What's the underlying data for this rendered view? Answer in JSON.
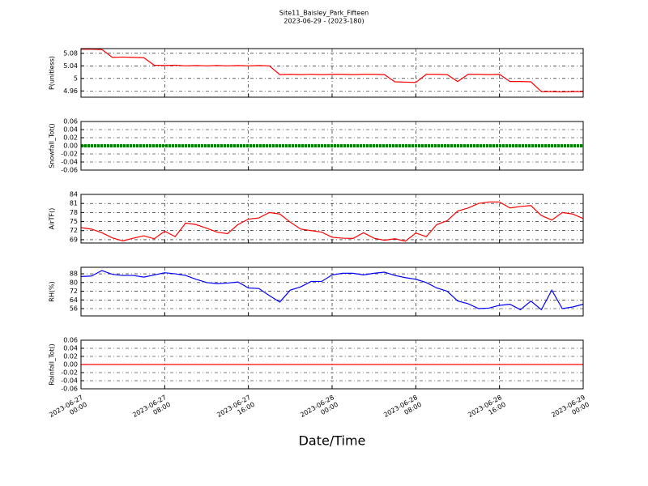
{
  "chart_data": [
    {
      "type": "line",
      "title": "Site11_Baisley_Park_Fifteen",
      "subtitle": "2023-06-29 - (2023-180)",
      "ylabel": "P(unitless)",
      "xlim": [
        "2023-06-27 00:00",
        "2023-06-29 00:00"
      ],
      "ylim": [
        4.94,
        5.095
      ],
      "yticks": [
        4.96,
        5.0,
        5.04,
        5.08
      ],
      "grid": true,
      "x": [
        "2023-06-27 00:00",
        "2023-06-27 01:00",
        "2023-06-27 02:00",
        "2023-06-27 03:00",
        "2023-06-27 04:00",
        "2023-06-27 05:00",
        "2023-06-27 06:00",
        "2023-06-27 07:00",
        "2023-06-27 08:00",
        "2023-06-27 09:00",
        "2023-06-27 10:00",
        "2023-06-27 11:00",
        "2023-06-27 12:00",
        "2023-06-27 13:00",
        "2023-06-27 14:00",
        "2023-06-27 15:00",
        "2023-06-27 16:00",
        "2023-06-27 17:00",
        "2023-06-27 18:00",
        "2023-06-27 19:00",
        "2023-06-27 20:00",
        "2023-06-27 21:00",
        "2023-06-27 22:00",
        "2023-06-27 23:00",
        "2023-06-28 00:00",
        "2023-06-28 01:00",
        "2023-06-28 02:00",
        "2023-06-28 03:00",
        "2023-06-28 04:00",
        "2023-06-28 05:00",
        "2023-06-28 06:00",
        "2023-06-28 07:00",
        "2023-06-28 08:00",
        "2023-06-28 09:00",
        "2023-06-28 10:00",
        "2023-06-28 11:00",
        "2023-06-28 12:00",
        "2023-06-28 13:00",
        "2023-06-28 14:00",
        "2023-06-28 15:00",
        "2023-06-28 16:00",
        "2023-06-28 17:00",
        "2023-06-28 18:00",
        "2023-06-28 19:00",
        "2023-06-28 20:00",
        "2023-06-28 21:00",
        "2023-06-28 22:00",
        "2023-06-28 23:00",
        "2023-06-29 00:00"
      ],
      "series": [
        {
          "color": "#ff0000",
          "values": [
            5.093,
            5.093,
            5.092,
            5.067,
            5.068,
            5.067,
            5.066,
            5.042,
            5.041,
            5.042,
            5.04,
            5.041,
            5.04,
            5.041,
            5.04,
            5.041,
            5.04,
            5.041,
            5.04,
            5.012,
            5.013,
            5.012,
            5.013,
            5.012,
            5.013,
            5.013,
            5.012,
            5.013,
            5.013,
            5.012,
            4.989,
            4.988,
            4.987,
            5.013,
            5.013,
            5.012,
            4.99,
            5.013,
            5.013,
            5.012,
            5.013,
            4.99,
            4.99,
            4.989,
            4.958,
            4.958,
            4.957,
            4.958,
            4.958
          ]
        }
      ]
    },
    {
      "type": "line",
      "ylabel": "Snowfall_Tot()",
      "xlim": [
        "2023-06-27 00:00",
        "2023-06-29 00:00"
      ],
      "ylim": [
        -0.06,
        0.06
      ],
      "yticks": [
        -0.06,
        -0.04,
        -0.02,
        {
          "value": 0,
          "label": "0.00"
        },
        0.02,
        0.04,
        0.06
      ],
      "grid": true,
      "x": [
        "2023-06-27 00:00",
        "2023-06-27 01:00",
        "2023-06-27 02:00",
        "2023-06-27 03:00",
        "2023-06-27 04:00",
        "2023-06-27 05:00",
        "2023-06-27 06:00",
        "2023-06-27 07:00",
        "2023-06-27 08:00",
        "2023-06-27 09:00",
        "2023-06-27 10:00",
        "2023-06-27 11:00",
        "2023-06-27 12:00",
        "2023-06-27 13:00",
        "2023-06-27 14:00",
        "2023-06-27 15:00",
        "2023-06-27 16:00",
        "2023-06-27 17:00",
        "2023-06-27 18:00",
        "2023-06-27 19:00",
        "2023-06-27 20:00",
        "2023-06-27 21:00",
        "2023-06-27 22:00",
        "2023-06-27 23:00",
        "2023-06-28 00:00",
        "2023-06-28 01:00",
        "2023-06-28 02:00",
        "2023-06-28 03:00",
        "2023-06-28 04:00",
        "2023-06-28 05:00",
        "2023-06-28 06:00",
        "2023-06-28 07:00",
        "2023-06-28 08:00",
        "2023-06-28 09:00",
        "2023-06-28 10:00",
        "2023-06-28 11:00",
        "2023-06-28 12:00",
        "2023-06-28 13:00",
        "2023-06-28 14:00",
        "2023-06-28 15:00",
        "2023-06-28 16:00",
        "2023-06-28 17:00",
        "2023-06-28 18:00",
        "2023-06-28 19:00",
        "2023-06-28 20:00",
        "2023-06-28 21:00",
        "2023-06-28 22:00",
        "2023-06-28 23:00",
        "2023-06-29 00:00"
      ],
      "series": [
        {
          "color": "#008000",
          "markers": true,
          "values": [
            0,
            0,
            0,
            0,
            0,
            0,
            0,
            0,
            0,
            0,
            0,
            0,
            0,
            0,
            0,
            0,
            0,
            0,
            0,
            0,
            0,
            0,
            0,
            0,
            0,
            0,
            0,
            0,
            0,
            0,
            0,
            0,
            0,
            0,
            0,
            0,
            0,
            0,
            0,
            0,
            0,
            0,
            0,
            0,
            0,
            0,
            0,
            0,
            0
          ]
        }
      ]
    },
    {
      "type": "line",
      "ylabel": "AirTF()",
      "xlim": [
        "2023-06-27 00:00",
        "2023-06-29 00:00"
      ],
      "ylim": [
        67.9,
        84
      ],
      "yticks": [
        69,
        72,
        75,
        78,
        81,
        84
      ],
      "grid": true,
      "x": [
        "2023-06-27 00:00",
        "2023-06-27 01:00",
        "2023-06-27 02:00",
        "2023-06-27 03:00",
        "2023-06-27 04:00",
        "2023-06-27 05:00",
        "2023-06-27 06:00",
        "2023-06-27 07:00",
        "2023-06-27 08:00",
        "2023-06-27 09:00",
        "2023-06-27 10:00",
        "2023-06-27 11:00",
        "2023-06-27 12:00",
        "2023-06-27 13:00",
        "2023-06-27 14:00",
        "2023-06-27 15:00",
        "2023-06-27 16:00",
        "2023-06-27 17:00",
        "2023-06-27 18:00",
        "2023-06-27 19:00",
        "2023-06-27 20:00",
        "2023-06-27 21:00",
        "2023-06-27 22:00",
        "2023-06-27 23:00",
        "2023-06-28 00:00",
        "2023-06-28 01:00",
        "2023-06-28 02:00",
        "2023-06-28 03:00",
        "2023-06-28 04:00",
        "2023-06-28 05:00",
        "2023-06-28 06:00",
        "2023-06-28 07:00",
        "2023-06-28 08:00",
        "2023-06-28 09:00",
        "2023-06-28 10:00",
        "2023-06-28 11:00",
        "2023-06-28 12:00",
        "2023-06-28 13:00",
        "2023-06-28 14:00",
        "2023-06-28 15:00",
        "2023-06-28 16:00",
        "2023-06-28 17:00",
        "2023-06-28 18:00",
        "2023-06-28 19:00",
        "2023-06-28 20:00",
        "2023-06-28 21:00",
        "2023-06-28 22:00",
        "2023-06-28 23:00",
        "2023-06-29 00:00"
      ],
      "series": [
        {
          "color": "#ff0000",
          "values": [
            73.0,
            72.5,
            71.3,
            69.6,
            68.6,
            69.5,
            70.3,
            69.3,
            71.8,
            70.0,
            74.5,
            74.0,
            72.8,
            71.5,
            71.0,
            74.0,
            75.8,
            76.2,
            78.0,
            77.5,
            74.8,
            72.5,
            72.0,
            71.5,
            69.8,
            69.5,
            69.4,
            71.3,
            69.5,
            68.8,
            69.3,
            68.5,
            71.2,
            70.0,
            74.0,
            75.3,
            78.5,
            79.5,
            81.0,
            81.5,
            81.5,
            79.5,
            80.0,
            80.3,
            77.0,
            75.5,
            78.0,
            77.5,
            76.0
          ]
        }
      ]
    },
    {
      "type": "line",
      "ylabel": "RH(%)",
      "xlim": [
        "2023-06-27 00:00",
        "2023-06-29 00:00"
      ],
      "ylim": [
        49.3,
        94
      ],
      "yticks": [
        56,
        64,
        72,
        80,
        88
      ],
      "grid": true,
      "x": [
        "2023-06-27 00:00",
        "2023-06-27 01:00",
        "2023-06-27 02:00",
        "2023-06-27 03:00",
        "2023-06-27 04:00",
        "2023-06-27 05:00",
        "2023-06-27 06:00",
        "2023-06-27 07:00",
        "2023-06-27 08:00",
        "2023-06-27 09:00",
        "2023-06-27 10:00",
        "2023-06-27 11:00",
        "2023-06-27 12:00",
        "2023-06-27 13:00",
        "2023-06-27 14:00",
        "2023-06-27 15:00",
        "2023-06-27 16:00",
        "2023-06-27 17:00",
        "2023-06-27 18:00",
        "2023-06-27 19:00",
        "2023-06-27 20:00",
        "2023-06-27 21:00",
        "2023-06-27 22:00",
        "2023-06-27 23:00",
        "2023-06-28 00:00",
        "2023-06-28 01:00",
        "2023-06-28 02:00",
        "2023-06-28 03:00",
        "2023-06-28 04:00",
        "2023-06-28 05:00",
        "2023-06-28 06:00",
        "2023-06-28 07:00",
        "2023-06-28 08:00",
        "2023-06-28 09:00",
        "2023-06-28 10:00",
        "2023-06-28 11:00",
        "2023-06-28 12:00",
        "2023-06-28 13:00",
        "2023-06-28 14:00",
        "2023-06-28 15:00",
        "2023-06-28 16:00",
        "2023-06-28 17:00",
        "2023-06-28 18:00",
        "2023-06-28 19:00",
        "2023-06-28 20:00",
        "2023-06-28 21:00",
        "2023-06-28 22:00",
        "2023-06-28 23:00",
        "2023-06-29 00:00"
      ],
      "series": [
        {
          "color": "#0000ff",
          "values": [
            85.5,
            86,
            91,
            87.5,
            86.5,
            86.5,
            85,
            87,
            89,
            88,
            86.5,
            83,
            80,
            79,
            79.5,
            80.5,
            75,
            74.5,
            68,
            62,
            73,
            76,
            81,
            81,
            87,
            88.5,
            88.5,
            87,
            88.5,
            89.5,
            86.5,
            84.5,
            83,
            80,
            75,
            72,
            63,
            60.5,
            56,
            56.5,
            59,
            60,
            55,
            63,
            55,
            73,
            56,
            57.5,
            60
          ]
        }
      ]
    },
    {
      "type": "line",
      "ylabel": "Rainfall_Tot()",
      "xlabel": "Date/Time",
      "xlim": [
        "2023-06-27 00:00",
        "2023-06-29 00:00"
      ],
      "ylim": [
        -0.06,
        0.06
      ],
      "yticks": [
        -0.06,
        -0.04,
        -0.02,
        {
          "value": 0,
          "label": "0.00"
        },
        0.02,
        0.04,
        0.06
      ],
      "grid": true,
      "xticks": [
        {
          "value": "2023-06-27 00:00",
          "label": "2023-06-27\n00:00"
        },
        {
          "value": "2023-06-27 08:00",
          "label": "2023-06-27\n08:00"
        },
        {
          "value": "2023-06-27 16:00",
          "label": "2023-06-27\n16:00"
        },
        {
          "value": "2023-06-28 00:00",
          "label": "2023-06-28\n00:00"
        },
        {
          "value": "2023-06-28 08:00",
          "label": "2023-06-28\n08:00"
        },
        {
          "value": "2023-06-28 16:00",
          "label": "2023-06-28\n16:00"
        },
        {
          "value": "2023-06-29 00:00",
          "label": "2023-06-29\n00:00"
        }
      ],
      "x": [
        "2023-06-27 00:00",
        "2023-06-27 01:00",
        "2023-06-27 02:00",
        "2023-06-27 03:00",
        "2023-06-27 04:00",
        "2023-06-27 05:00",
        "2023-06-27 06:00",
        "2023-06-27 07:00",
        "2023-06-27 08:00",
        "2023-06-27 09:00",
        "2023-06-27 10:00",
        "2023-06-27 11:00",
        "2023-06-27 12:00",
        "2023-06-27 13:00",
        "2023-06-27 14:00",
        "2023-06-27 15:00",
        "2023-06-27 16:00",
        "2023-06-27 17:00",
        "2023-06-27 18:00",
        "2023-06-27 19:00",
        "2023-06-27 20:00",
        "2023-06-27 21:00",
        "2023-06-27 22:00",
        "2023-06-27 23:00",
        "2023-06-28 00:00",
        "2023-06-28 01:00",
        "2023-06-28 02:00",
        "2023-06-28 03:00",
        "2023-06-28 04:00",
        "2023-06-28 05:00",
        "2023-06-28 06:00",
        "2023-06-28 07:00",
        "2023-06-28 08:00",
        "2023-06-28 09:00",
        "2023-06-28 10:00",
        "2023-06-28 11:00",
        "2023-06-28 12:00",
        "2023-06-28 13:00",
        "2023-06-28 14:00",
        "2023-06-28 15:00",
        "2023-06-28 16:00",
        "2023-06-28 17:00",
        "2023-06-28 18:00",
        "2023-06-28 19:00",
        "2023-06-28 20:00",
        "2023-06-28 21:00",
        "2023-06-28 22:00",
        "2023-06-28 23:00",
        "2023-06-29 00:00"
      ],
      "series": [
        {
          "color": "#ff0000",
          "values": [
            0,
            0,
            0,
            0,
            0,
            0,
            0,
            0,
            0,
            0,
            0,
            0,
            0,
            0,
            0,
            0,
            0,
            0,
            0,
            0,
            0,
            0,
            0,
            0,
            0,
            0,
            0,
            0,
            0,
            0,
            0,
            0,
            0,
            0,
            0,
            0,
            0,
            0,
            0,
            0,
            0,
            0,
            0,
            0,
            0,
            0,
            0,
            0,
            0
          ]
        }
      ]
    }
  ]
}
